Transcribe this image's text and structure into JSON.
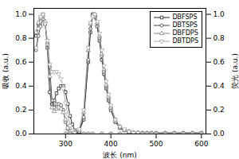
{
  "chart_data": {
    "type": "line",
    "xlabel": "波长 (nm)",
    "ylabel": "吸收 (a.u.)",
    "y2label": "荧光 (a.u.)",
    "xlim": [
      230,
      610
    ],
    "ylim": [
      0.0,
      1.05
    ],
    "y2lim": [
      0.0,
      1.05
    ],
    "xticks": [
      300,
      400,
      500,
      600
    ],
    "yticks": [
      {
        "value": 0.0,
        "label": "0.0"
      },
      0.2,
      0.4,
      0.6,
      0.8,
      {
        "value": 1.0,
        "label": "1.0"
      }
    ],
    "y2ticks": [
      {
        "value": 0.0,
        "label": "0.0"
      },
      0.2,
      0.4,
      0.6,
      0.8,
      {
        "value": 1.0,
        "label": "1.0"
      }
    ],
    "legend": "upper right",
    "line_style": "solid",
    "series": [
      {
        "name": "DBFSPS",
        "color": "#222222",
        "marker": "square",
        "axis": "y",
        "x": [
          235,
          240,
          245,
          250,
          255,
          260,
          265,
          270,
          275,
          280,
          285,
          290,
          295,
          300,
          305,
          310,
          315,
          320,
          330,
          340,
          350,
          360,
          380,
          400,
          420,
          440,
          460,
          480,
          500,
          520,
          540,
          560,
          580,
          600
        ],
        "values": [
          0.82,
          0.92,
          0.97,
          1.0,
          0.92,
          0.72,
          0.35,
          0.25,
          0.28,
          0.34,
          0.38,
          0.4,
          0.4,
          0.35,
          0.25,
          0.15,
          0.08,
          0.03,
          0.01,
          0.0,
          0.0,
          0.0,
          0.0,
          0.0,
          0.0,
          0.0,
          0.0,
          0.0,
          0.0,
          0.0,
          0.0,
          0.0,
          0.0,
          0.0
        ]
      },
      {
        "name": "DBTSPS",
        "color": "#444444",
        "marker": "circle",
        "axis": "y",
        "x": [
          235,
          240,
          245,
          250,
          255,
          260,
          265,
          270,
          275,
          280,
          285,
          290,
          295,
          300,
          305,
          310,
          315,
          320,
          330,
          340,
          350,
          360,
          380,
          400,
          420,
          440,
          460,
          480,
          500,
          520,
          540,
          560,
          580,
          600
        ],
        "values": [
          0.7,
          0.82,
          0.9,
          0.96,
          0.92,
          0.76,
          0.56,
          0.28,
          0.22,
          0.25,
          0.25,
          0.24,
          0.2,
          0.1,
          0.04,
          0.02,
          0.01,
          0.01,
          0.0,
          0.0,
          0.0,
          0.0,
          0.0,
          0.0,
          0.0,
          0.0,
          0.0,
          0.0,
          0.0,
          0.0,
          0.0,
          0.0,
          0.0,
          0.0
        ]
      },
      {
        "name": "DBFDPS",
        "color": "#888888",
        "marker": "triangle-up",
        "axis": "y",
        "x": [
          235,
          240,
          245,
          250,
          255,
          260,
          265,
          270,
          275,
          280,
          285,
          290,
          295,
          300,
          305,
          310,
          315,
          320,
          330,
          340,
          350,
          360,
          380,
          400,
          420,
          440,
          460,
          480,
          500,
          520,
          540,
          560,
          580,
          600
        ],
        "values": [
          0.85,
          0.93,
          0.97,
          0.99,
          0.94,
          0.75,
          0.48,
          0.22,
          0.19,
          0.21,
          0.22,
          0.21,
          0.18,
          0.12,
          0.05,
          0.02,
          0.01,
          0.0,
          0.0,
          0.0,
          0.0,
          0.0,
          0.0,
          0.0,
          0.0,
          0.0,
          0.0,
          0.0,
          0.0,
          0.0,
          0.0,
          0.0,
          0.0,
          0.0
        ]
      },
      {
        "name": "DBTDPS",
        "color": "#aaaaaa",
        "marker": "triangle-down",
        "axis": "y",
        "x": [
          235,
          240,
          245,
          250,
          255,
          260,
          265,
          270,
          275,
          280,
          285,
          290,
          295,
          300,
          305,
          310,
          315,
          320,
          330,
          340,
          350,
          360,
          380,
          400,
          420,
          440,
          460,
          480,
          500,
          520,
          540,
          560,
          580,
          600
        ],
        "values": [
          0.72,
          0.88,
          0.98,
          1.0,
          0.92,
          0.78,
          0.58,
          0.52,
          0.52,
          0.52,
          0.5,
          0.46,
          0.38,
          0.26,
          0.16,
          0.07,
          0.03,
          0.01,
          0.0,
          0.0,
          0.0,
          0.0,
          0.0,
          0.0,
          0.0,
          0.0,
          0.0,
          0.0,
          0.0,
          0.0,
          0.0,
          0.0,
          0.0,
          0.0
        ]
      },
      {
        "color": "#222222",
        "marker": "square",
        "axis": "y2",
        "x": [
          300,
          310,
          320,
          330,
          340,
          350,
          355,
          360,
          365,
          370,
          375,
          380,
          385,
          390,
          395,
          400,
          410,
          420,
          430,
          440,
          450,
          460,
          470,
          480,
          490,
          500,
          520,
          540,
          560,
          580,
          600
        ],
        "values": [
          0.0,
          0.0,
          0.0,
          0.02,
          0.12,
          0.6,
          0.85,
          1.0,
          0.98,
          0.9,
          0.78,
          0.62,
          0.5,
          0.38,
          0.28,
          0.2,
          0.1,
          0.05,
          0.03,
          0.02,
          0.01,
          0.01,
          0.0,
          0.0,
          0.0,
          0.0,
          0.0,
          0.0,
          0.0,
          0.0,
          0.0
        ]
      },
      {
        "color": "#444444",
        "marker": "circle",
        "axis": "y2",
        "x": [
          300,
          310,
          320,
          330,
          340,
          350,
          355,
          360,
          365,
          370,
          375,
          380,
          385,
          390,
          395,
          400,
          410,
          420,
          430,
          440,
          450,
          460,
          470,
          480,
          490,
          500,
          520,
          540,
          560,
          580,
          600
        ],
        "values": [
          0.0,
          0.0,
          0.0,
          0.02,
          0.14,
          0.62,
          0.88,
          1.0,
          0.98,
          0.9,
          0.8,
          0.65,
          0.52,
          0.4,
          0.3,
          0.22,
          0.12,
          0.06,
          0.03,
          0.02,
          0.01,
          0.01,
          0.01,
          0.01,
          0.01,
          0.01,
          0.01,
          0.01,
          0.01,
          0.01,
          0.01
        ]
      },
      {
        "color": "#888888",
        "marker": "triangle-up",
        "axis": "y2",
        "x": [
          300,
          310,
          320,
          330,
          340,
          350,
          355,
          360,
          365,
          370,
          375,
          380,
          385,
          390,
          395,
          400,
          410,
          420,
          430,
          440,
          450,
          460,
          470,
          480,
          490,
          500,
          520,
          540,
          560,
          580,
          600
        ],
        "values": [
          0.0,
          0.0,
          0.01,
          0.03,
          0.18,
          0.7,
          0.92,
          0.99,
          1.0,
          0.93,
          0.82,
          0.67,
          0.54,
          0.41,
          0.31,
          0.22,
          0.11,
          0.06,
          0.03,
          0.02,
          0.01,
          0.01,
          0.0,
          0.0,
          0.0,
          0.0,
          0.0,
          0.0,
          0.0,
          0.0,
          0.0
        ]
      },
      {
        "color": "#aaaaaa",
        "marker": "triangle-down",
        "axis": "y2",
        "x": [
          300,
          310,
          320,
          330,
          340,
          350,
          355,
          360,
          365,
          370,
          375,
          380,
          385,
          390,
          395,
          400,
          410,
          420,
          430,
          440,
          450,
          460,
          470,
          480,
          490,
          500,
          520,
          540,
          560,
          580,
          600
        ],
        "values": [
          0.0,
          0.0,
          0.01,
          0.04,
          0.2,
          0.72,
          0.93,
          0.98,
          1.0,
          0.94,
          0.84,
          0.7,
          0.57,
          0.44,
          0.33,
          0.24,
          0.12,
          0.06,
          0.04,
          0.02,
          0.01,
          0.01,
          0.0,
          0.0,
          0.0,
          0.0,
          0.0,
          0.0,
          0.0,
          0.0,
          0.0
        ]
      }
    ]
  }
}
